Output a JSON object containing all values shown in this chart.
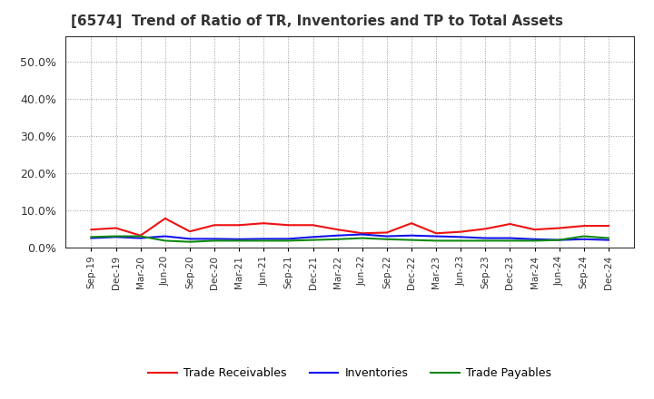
{
  "title": "[6574]  Trend of Ratio of TR, Inventories and TP to Total Assets",
  "x_labels": [
    "Sep-19",
    "Dec-19",
    "Mar-20",
    "Jun-20",
    "Sep-20",
    "Dec-20",
    "Mar-21",
    "Jun-21",
    "Sep-21",
    "Dec-21",
    "Mar-22",
    "Jun-22",
    "Sep-22",
    "Dec-22",
    "Mar-23",
    "Jun-23",
    "Sep-23",
    "Dec-23",
    "Mar-24",
    "Jun-24",
    "Sep-24",
    "Dec-24"
  ],
  "trade_receivables": [
    0.048,
    0.052,
    0.032,
    0.078,
    0.043,
    0.06,
    0.06,
    0.065,
    0.06,
    0.06,
    0.048,
    0.038,
    0.04,
    0.065,
    0.038,
    0.042,
    0.05,
    0.063,
    0.048,
    0.052,
    0.058,
    0.058
  ],
  "inventories": [
    0.025,
    0.028,
    0.025,
    0.03,
    0.023,
    0.023,
    0.022,
    0.023,
    0.023,
    0.028,
    0.032,
    0.035,
    0.03,
    0.032,
    0.03,
    0.028,
    0.025,
    0.025,
    0.022,
    0.02,
    0.022,
    0.02
  ],
  "trade_payables": [
    0.028,
    0.03,
    0.03,
    0.018,
    0.015,
    0.018,
    0.018,
    0.018,
    0.018,
    0.02,
    0.022,
    0.025,
    0.022,
    0.02,
    0.018,
    0.018,
    0.018,
    0.018,
    0.018,
    0.02,
    0.03,
    0.025
  ],
  "tr_color": "#EE1111",
  "inv_color": "#1111EE",
  "tp_color": "#118811",
  "ylim": [
    0.0,
    0.57
  ],
  "yticks": [
    0.0,
    0.1,
    0.2,
    0.3,
    0.4,
    0.5
  ],
  "background_color": "#FFFFFF",
  "plot_bg_color": "#FFFFFF",
  "title_color": "#333333",
  "legend_labels": [
    "Trade Receivables",
    "Inventories",
    "Trade Payables"
  ]
}
